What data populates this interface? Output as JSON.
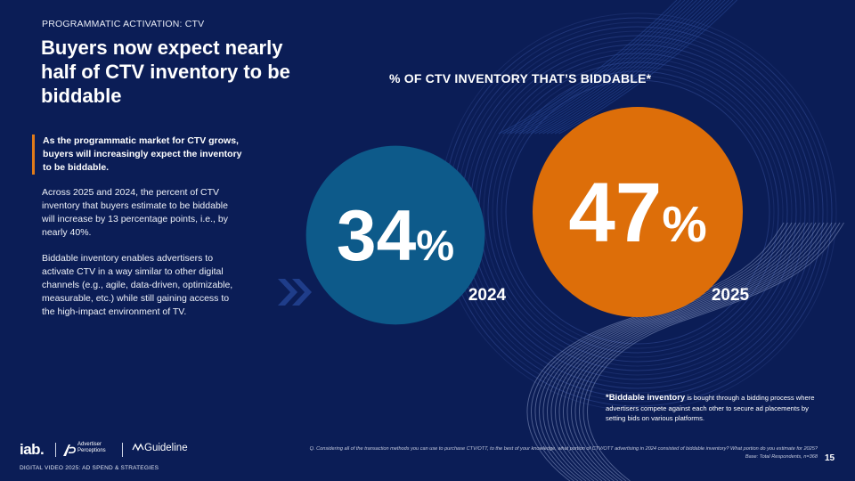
{
  "header": {
    "eyebrow": "PROGRAMMATIC ACTIVATION: CTV",
    "title": "Buyers now expect nearly half of CTV inventory to be biddable"
  },
  "body": {
    "lead": "As the programmatic market for CTV grows, buyers will increasingly expect the inventory to be biddable.",
    "paragraph1": "Across 2025 and 2024, the percent of CTV inventory that buyers estimate to be biddable will increase by 13 percentage points, i.e., by nearly 40%.",
    "paragraph2": "Biddable inventory enables advertisers to activate CTV in a way similar to other digital channels (e.g., agile, data-driven, optimizable, measurable, etc.) while still gaining access to the high-impact environment of TV."
  },
  "chart_data": {
    "type": "bubble",
    "title": "% OF CTV INVENTORY THAT’S BIDDABLE*",
    "categories": [
      "2024",
      "2025"
    ],
    "values": [
      34,
      47
    ],
    "value_labels": [
      "34",
      "47"
    ],
    "unit": "%",
    "colors": [
      "#0d5a8a",
      "#dd6e09"
    ]
  },
  "footnote": {
    "term": "*Biddable inventory",
    "text": " is bought through a bidding process where advertisers compete against each other to secure ad placements by setting bids on various platforms."
  },
  "source": {
    "question": "Q. Considering all of the transaction methods you can use to purchase CTV/OTT, to the best of your knowledge, what portion of CTV/OTT advertising in 2024 consisted of biddable inventory? What portion do you estimate for 2025?",
    "base": "Base: Total Respondents, n=368"
  },
  "footer": {
    "report": "DIGITAL VIDEO 2025: AD SPEND & STRATEGIES",
    "page": "15",
    "logo_iab": "iab.",
    "logo_ap_line1": "Advertiser",
    "logo_ap_line2": "Perceptions",
    "logo_guideline": "Guideline",
    "icons": [
      "ap-logo-icon",
      "guideline-wave-icon",
      "double-chevron-icon"
    ]
  },
  "colors": {
    "background": "#0b1d56",
    "accent": "#e07a1a",
    "circle_2024": "#0d5a8a",
    "circle_2025": "#dd6e09"
  }
}
